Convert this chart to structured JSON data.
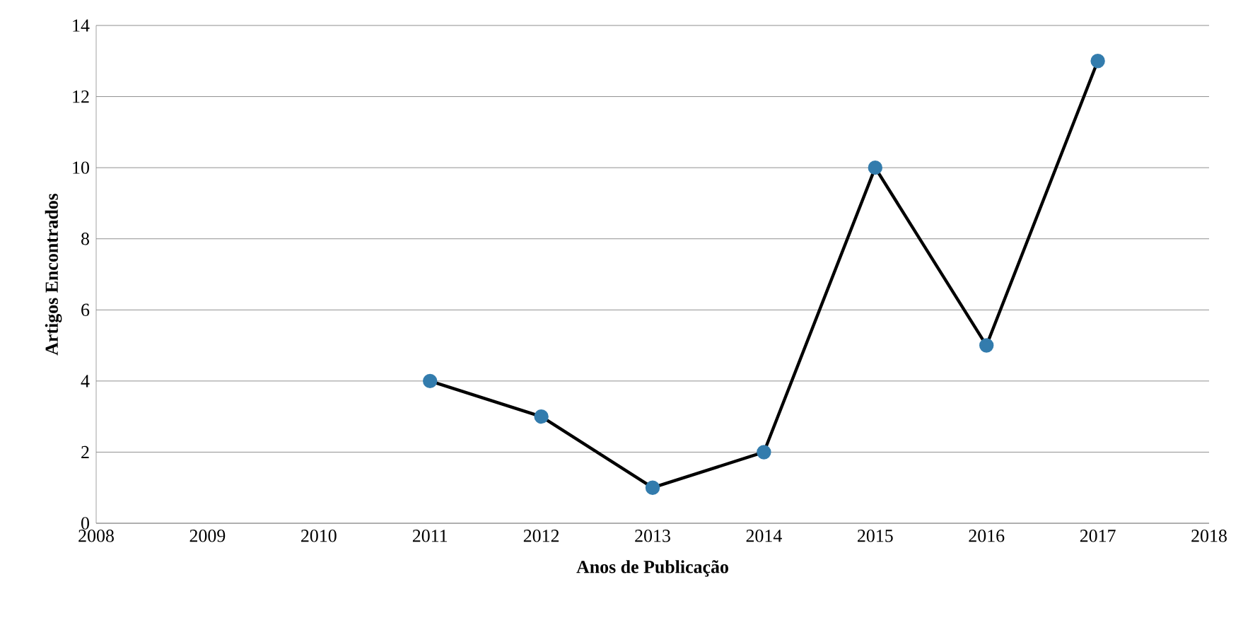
{
  "chart_data": {
    "type": "line",
    "xlabel": "Anos de Publicação",
    "ylabel": "Artigos Encontrados",
    "x": [
      2011,
      2012,
      2013,
      2014,
      2015,
      2016,
      2017
    ],
    "series": [
      {
        "color": "#000000",
        "values": [
          4,
          3,
          1,
          2,
          10,
          5,
          13
        ]
      }
    ],
    "xlim": [
      2008,
      2018
    ],
    "xticks": [
      2008,
      2009,
      2010,
      2011,
      2012,
      2013,
      2014,
      2015,
      2016,
      2017,
      2018
    ],
    "ylim": [
      0,
      14
    ],
    "yticks": [
      0,
      2,
      4,
      6,
      8,
      10,
      12,
      14
    ],
    "grid": "y",
    "marker": "circle",
    "line_style": "solid"
  }
}
